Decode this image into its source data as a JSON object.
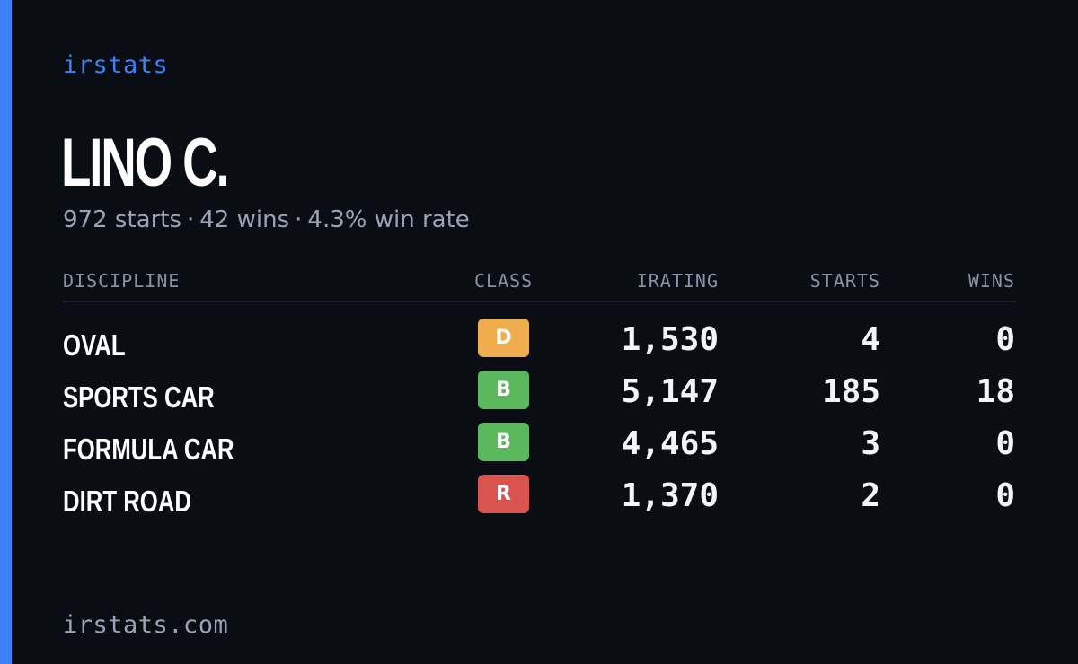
{
  "colors": {
    "accent": "#3b82f6",
    "background": "#0a0d14",
    "muted": "#9aa3b5"
  },
  "brand": "irstats",
  "driver": {
    "name": "LINO C.",
    "starts": "972 starts",
    "wins": "42 wins",
    "win_rate": "4.3% win rate",
    "separator": "·"
  },
  "table": {
    "headers": {
      "discipline": "DISCIPLINE",
      "class": "CLASS",
      "irating": "IRATING",
      "starts": "STARTS",
      "wins": "WINS"
    },
    "rows": [
      {
        "discipline": "OVAL",
        "class": "D",
        "class_color": "#f0ad4e",
        "irating": "1,530",
        "starts": "4",
        "wins": "0"
      },
      {
        "discipline": "SPORTS CAR",
        "class": "B",
        "class_color": "#5cb85c",
        "irating": "5,147",
        "starts": "185",
        "wins": "18"
      },
      {
        "discipline": "FORMULA CAR",
        "class": "B",
        "class_color": "#5cb85c",
        "irating": "4,465",
        "starts": "3",
        "wins": "0"
      },
      {
        "discipline": "DIRT ROAD",
        "class": "R",
        "class_color": "#d9534f",
        "irating": "1,370",
        "starts": "2",
        "wins": "0"
      }
    ]
  },
  "footer": "irstats.com"
}
